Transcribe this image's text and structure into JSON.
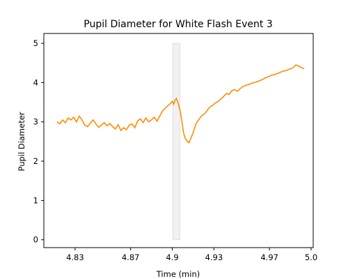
{
  "chart_data": {
    "type": "line",
    "title": "Pupil Diameter for White Flash Event 3",
    "xlabel": "Time (min)",
    "ylabel": "Pupil Diameter",
    "xlim": [
      4.8075,
      5.0015
    ],
    "ylim": [
      -0.2,
      5.25
    ],
    "x_ticks": [
      4.83,
      4.87,
      4.9,
      4.93,
      4.97,
      5.0
    ],
    "x_tick_labels": [
      "4.83",
      "4.87",
      "4.9",
      "4.93",
      "4.97",
      "5.0"
    ],
    "y_ticks": [
      0,
      1,
      2,
      3,
      4,
      5
    ],
    "y_tick_labels": [
      "0",
      "1",
      "2",
      "3",
      "4",
      "5"
    ],
    "grid": false,
    "highlight_span": {
      "x_start": 4.9005,
      "x_end": 4.9055,
      "y_start": 0,
      "y_end": 5.0,
      "color": "#e0e0e0"
    },
    "series": [
      {
        "color": "#ff8c00",
        "x": [
          4.817,
          4.819,
          4.821,
          4.823,
          4.825,
          4.827,
          4.829,
          4.831,
          4.833,
          4.835,
          4.837,
          4.839,
          4.841,
          4.843,
          4.845,
          4.847,
          4.849,
          4.851,
          4.853,
          4.855,
          4.857,
          4.859,
          4.861,
          4.863,
          4.865,
          4.867,
          4.869,
          4.871,
          4.873,
          4.875,
          4.877,
          4.879,
          4.881,
          4.883,
          4.885,
          4.887,
          4.889,
          4.891,
          4.893,
          4.895,
          4.897,
          4.899,
          4.9,
          4.901,
          4.902,
          4.903,
          4.904,
          4.905,
          4.906,
          4.907,
          4.908,
          4.909,
          4.91,
          4.911,
          4.912,
          4.913,
          4.915,
          4.917,
          4.919,
          4.921,
          4.923,
          4.925,
          4.927,
          4.929,
          4.931,
          4.933,
          4.935,
          4.937,
          4.939,
          4.941,
          4.943,
          4.945,
          4.947,
          4.949,
          4.951,
          4.953,
          4.955,
          4.957,
          4.959,
          4.961,
          4.963,
          4.965,
          4.967,
          4.969,
          4.971,
          4.973,
          4.975,
          4.977,
          4.979,
          4.981,
          4.983,
          4.985,
          4.987,
          4.989,
          4.991,
          4.993,
          4.995
        ],
        "y": [
          3.0,
          2.95,
          3.05,
          2.98,
          3.1,
          3.05,
          3.12,
          3.0,
          3.15,
          3.05,
          2.92,
          2.88,
          2.97,
          3.05,
          2.95,
          2.86,
          2.92,
          2.98,
          2.9,
          2.96,
          2.88,
          2.82,
          2.93,
          2.78,
          2.85,
          2.8,
          2.92,
          2.95,
          2.85,
          3.02,
          3.08,
          2.98,
          3.1,
          3.0,
          3.05,
          3.12,
          3.02,
          3.15,
          3.28,
          3.35,
          3.42,
          3.48,
          3.52,
          3.45,
          3.55,
          3.6,
          3.5,
          3.38,
          3.22,
          3.0,
          2.75,
          2.6,
          2.55,
          2.5,
          2.47,
          2.55,
          2.72,
          2.95,
          3.05,
          3.15,
          3.2,
          3.28,
          3.38,
          3.42,
          3.48,
          3.52,
          3.58,
          3.65,
          3.72,
          3.7,
          3.8,
          3.82,
          3.78,
          3.85,
          3.9,
          3.93,
          3.95,
          3.98,
          4.0,
          4.02,
          4.05,
          4.08,
          4.12,
          4.15,
          4.18,
          4.2,
          4.22,
          4.25,
          4.28,
          4.3,
          4.32,
          4.35,
          4.38,
          4.45,
          4.42,
          4.38,
          4.35
        ]
      }
    ]
  }
}
